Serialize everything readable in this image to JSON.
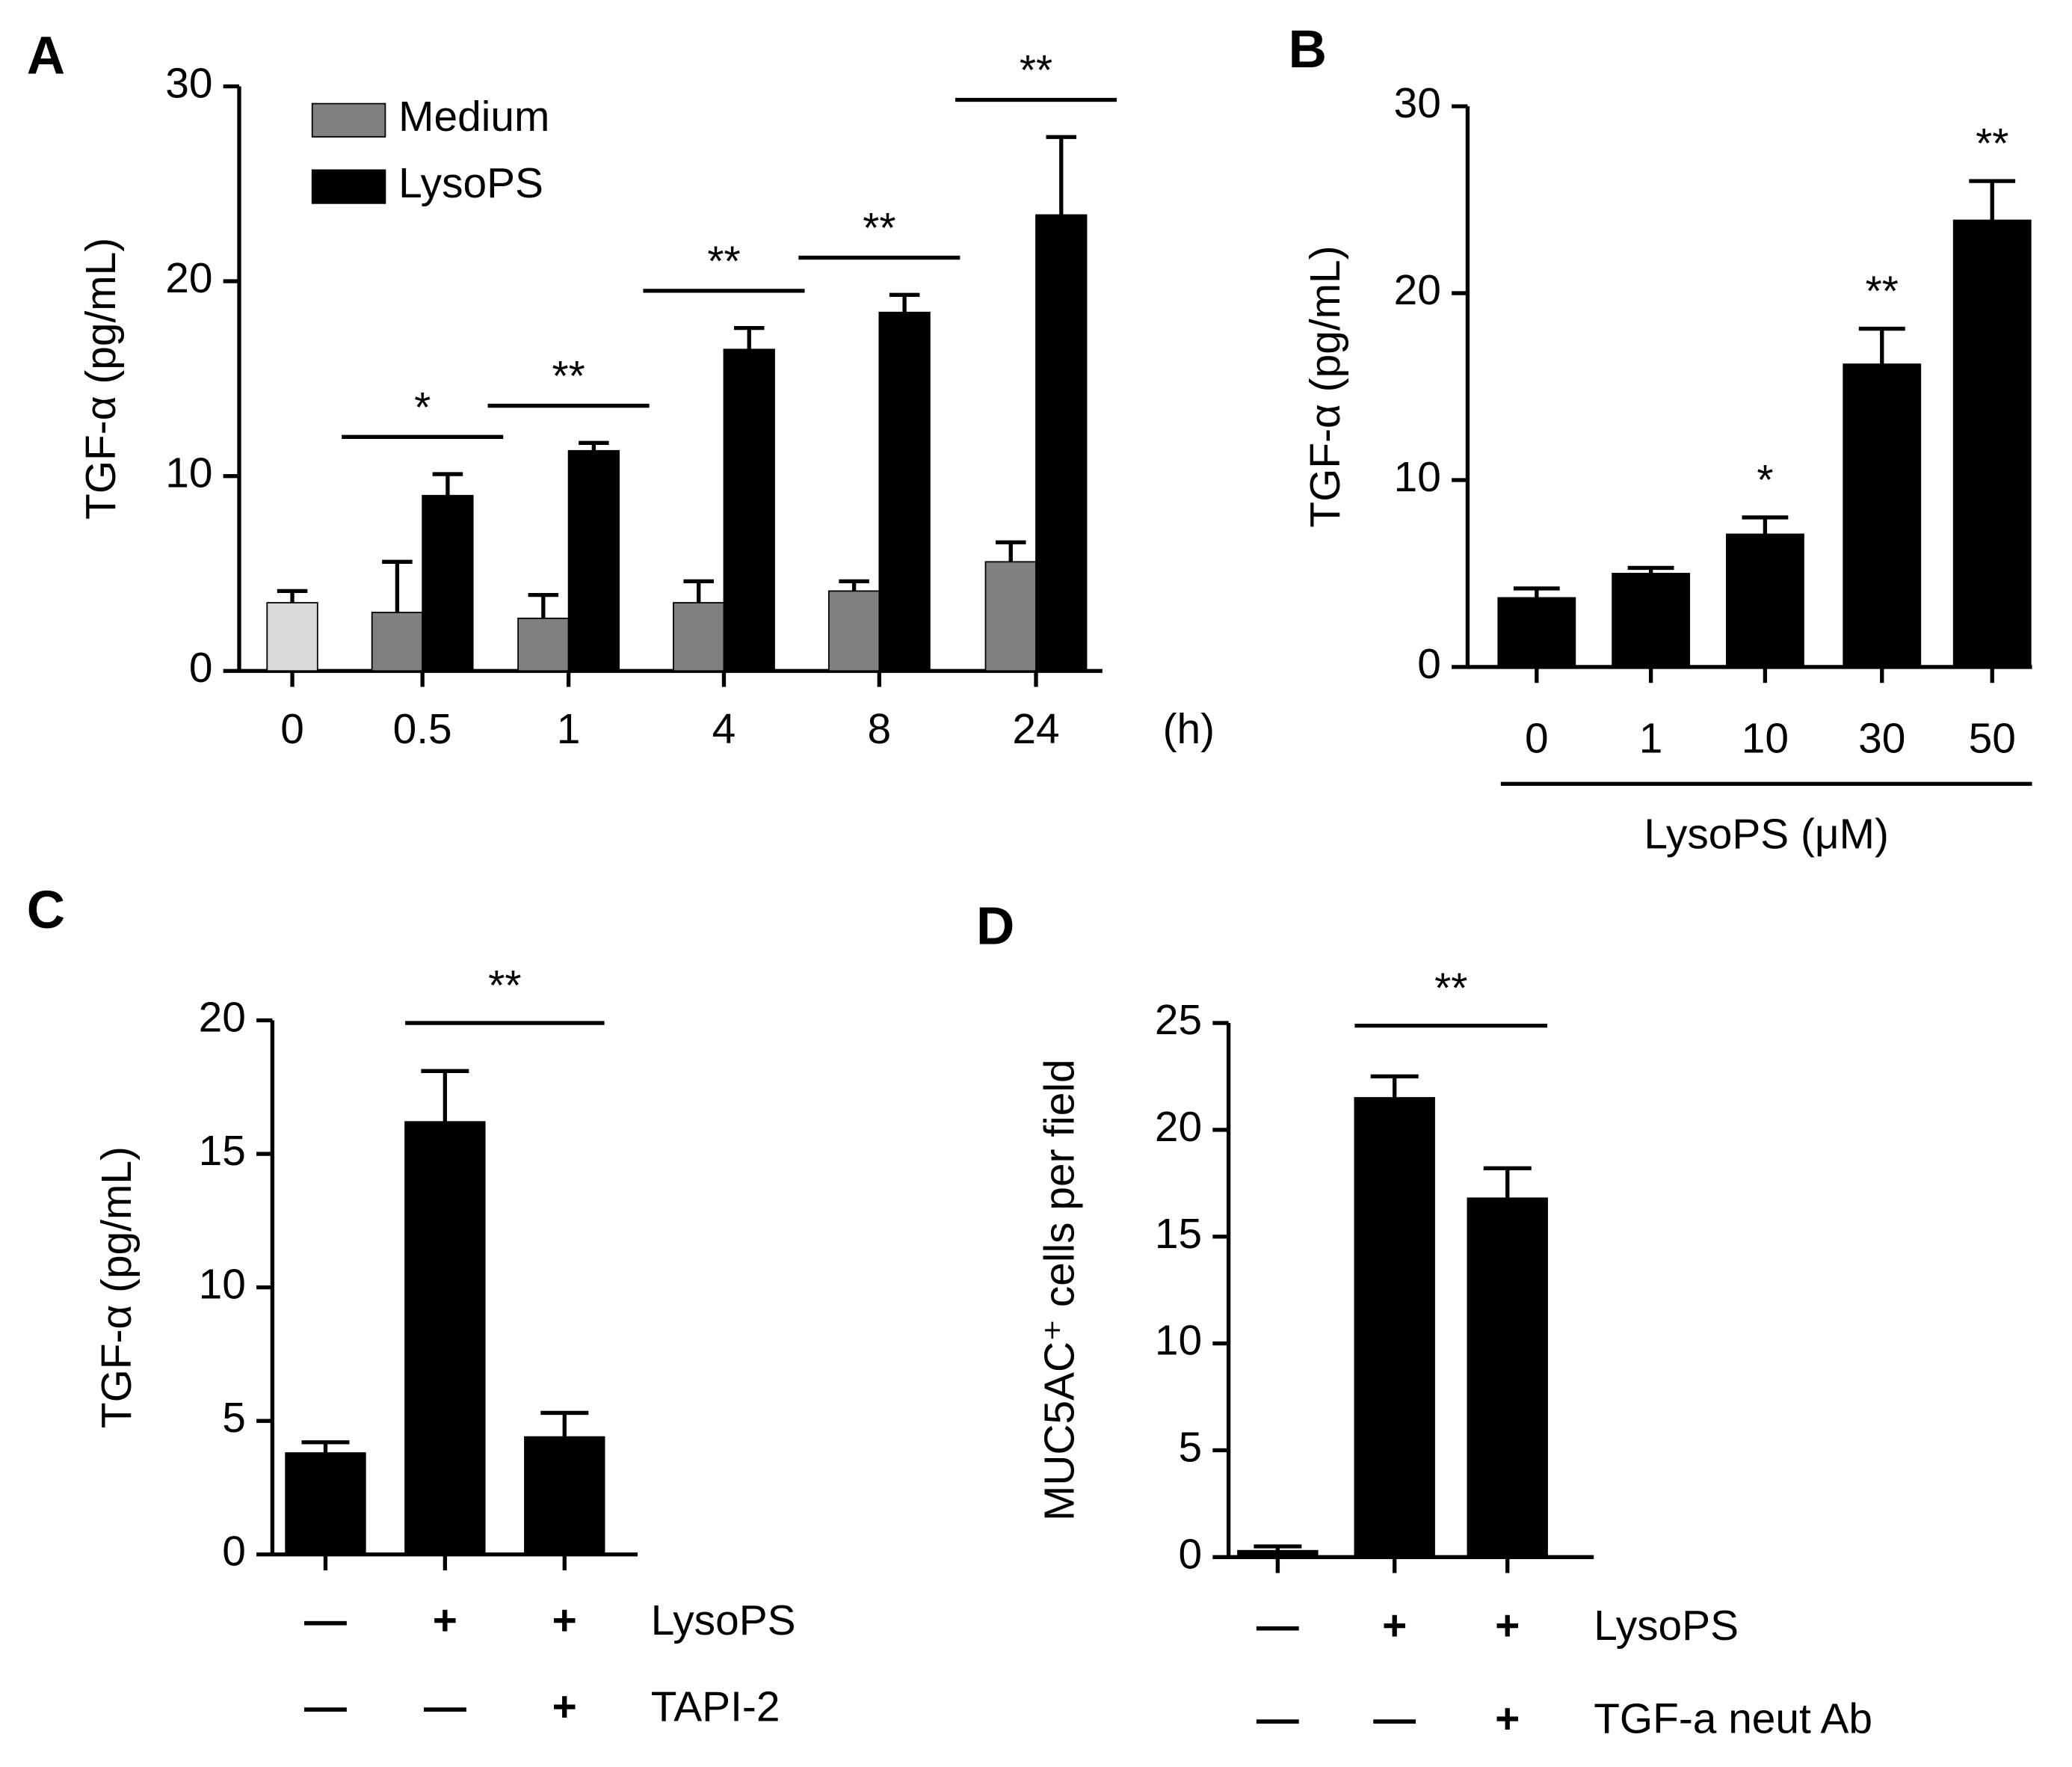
{
  "chart_data": [
    {
      "type": "grouped_bar",
      "panel": "A",
      "ylabel": "TGF-α (pg/mL)",
      "xunit": "(h)",
      "categories": [
        "0",
        "0.5",
        "1",
        "4",
        "8",
        "24"
      ],
      "series": [
        {
          "name": "Medium",
          "color": "#808080",
          "colors": [
            "#d9d9d9",
            "#808080",
            "#808080",
            "#808080",
            "#808080",
            "#808080"
          ],
          "values": [
            3.5,
            3.0,
            2.7,
            3.5,
            4.1,
            5.6
          ],
          "errors": [
            0.6,
            2.6,
            1.2,
            1.1,
            0.5,
            1.0
          ]
        },
        {
          "name": "LysoPS",
          "color": "#000000",
          "values": [
            null,
            9.0,
            11.3,
            16.5,
            18.4,
            23.4
          ],
          "errors": [
            null,
            1.1,
            0.4,
            1.1,
            0.9,
            4.0
          ]
        }
      ],
      "annotations": [
        {
          "text": "*",
          "category": "0.5"
        },
        {
          "text": "**",
          "category": "1"
        },
        {
          "text": "**",
          "category": "4"
        },
        {
          "text": "**",
          "category": "8"
        },
        {
          "text": "**",
          "category": "24"
        }
      ],
      "ylim": [
        0,
        30
      ],
      "yticks": [
        0,
        10,
        20,
        30
      ]
    },
    {
      "type": "bar",
      "panel": "B",
      "ylabel": "TGF-α (pg/mL)",
      "xlabel": "LysoPS (μM)",
      "color": "#000000",
      "categories": [
        "0",
        "1",
        "10",
        "30",
        "50"
      ],
      "values": [
        3.7,
        5.0,
        7.1,
        16.2,
        23.9
      ],
      "errors": [
        0.5,
        0.3,
        0.9,
        1.9,
        2.1
      ],
      "annotations": [
        {
          "text": "*",
          "category": "10"
        },
        {
          "text": "**",
          "category": "30"
        },
        {
          "text": "**",
          "category": "50"
        }
      ],
      "ylim": [
        0,
        30
      ],
      "yticks": [
        0,
        10,
        20,
        30
      ]
    },
    {
      "type": "bar",
      "panel": "C",
      "ylabel": "TGF-α (pg/mL)",
      "color": "#000000",
      "values": [
        3.8,
        16.2,
        4.4
      ],
      "errors": [
        0.4,
        1.9,
        0.9
      ],
      "conditions": [
        {
          "name": "LysoPS",
          "signs": [
            "—",
            "+",
            "+"
          ]
        },
        {
          "name": "TAPI-2",
          "signs": [
            "—",
            "—",
            "+"
          ]
        }
      ],
      "annotations": [
        {
          "text": "**",
          "between": [
            1,
            2
          ]
        }
      ],
      "ylim": [
        0,
        20
      ],
      "yticks": [
        0,
        5,
        10,
        15,
        20
      ]
    },
    {
      "type": "bar",
      "panel": "D",
      "ylabel": "MUC5AC⁺ cells per field",
      "color": "#000000",
      "values": [
        0.3,
        21.5,
        16.8
      ],
      "errors": [
        0.2,
        1.0,
        1.4
      ],
      "conditions": [
        {
          "name": "LysoPS",
          "signs": [
            "—",
            "+",
            "+"
          ]
        },
        {
          "name": "TGF-a neut Ab",
          "signs": [
            "—",
            "—",
            "+"
          ]
        }
      ],
      "annotations": [
        {
          "text": "**",
          "between": [
            1,
            2
          ]
        }
      ],
      "ylim": [
        0,
        25
      ],
      "yticks": [
        0,
        5,
        10,
        15,
        20,
        25
      ]
    }
  ]
}
